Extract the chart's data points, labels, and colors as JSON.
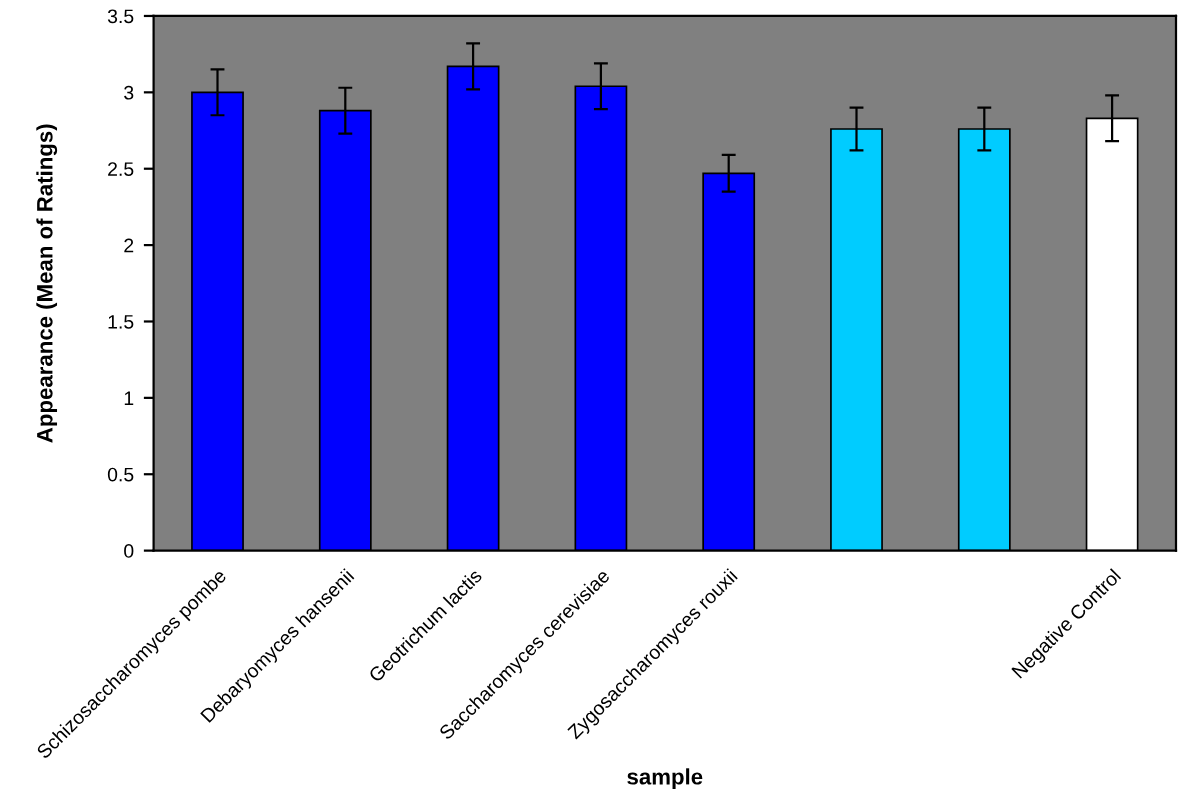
{
  "chart_data": {
    "type": "bar",
    "xlabel": "sample",
    "ylabel": "Appearance (Mean of Ratings)",
    "categories": [
      "Schizosaccharomyces pombe",
      "Debaryomyces hansenii",
      "Geotrichum lactis",
      "Saccharomyces cerevisiae",
      "Zygosaccharomyces rouxii",
      null,
      null,
      "Negative Control"
    ],
    "values": [
      3.0,
      2.88,
      3.17,
      3.04,
      2.47,
      2.76,
      2.76,
      2.83
    ],
    "errors": [
      0.15,
      0.15,
      0.15,
      0.15,
      0.12,
      0.14,
      0.14,
      0.15
    ],
    "colors": [
      "#0000ff",
      "#0000ff",
      "#0000ff",
      "#0000ff",
      "#0000ff",
      "#00ccff",
      "#00ccff",
      "#ffffff"
    ],
    "ylim": [
      0,
      3.5
    ],
    "yticks": [
      0,
      0.5,
      1,
      1.5,
      2,
      2.5,
      3,
      3.5
    ],
    "grid": false
  }
}
